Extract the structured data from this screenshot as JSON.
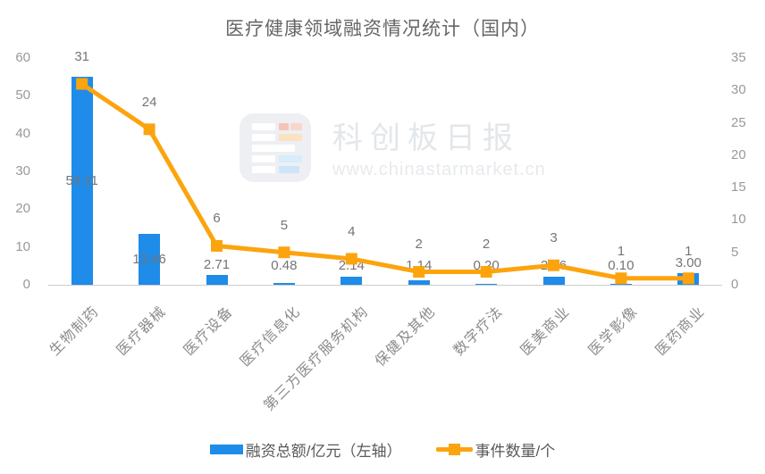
{
  "title": "医疗健康领域融资情况统计（国内）",
  "watermark": {
    "brand": "科创板日报",
    "url": "www.chinastarmarket.cn"
  },
  "legend": {
    "bar": "融资总额/亿元（左轴）",
    "line": "事件数量/个"
  },
  "colors": {
    "bar": "#1e8ce8",
    "line": "#fca40e",
    "axis_line": "#cccccc",
    "title_text": "#666666",
    "tick_text": "#999999",
    "value_text": "#757575",
    "category_text": "#8c8c8c",
    "legend_text": "#595959"
  },
  "chart_data": {
    "type": "bar+line",
    "title": "医疗健康领域融资情况统计（国内）",
    "categories": [
      "生物制药",
      "医疗器械",
      "医疗设备",
      "医疗信息化",
      "第三方医疗服务机构",
      "保健及其他",
      "数字疗法",
      "医美商业",
      "医学影像",
      "医药商业"
    ],
    "series": [
      {
        "name": "融资总额/亿元（左轴）",
        "type": "bar",
        "axis": "left",
        "values": [
          55.11,
          13.46,
          2.71,
          0.48,
          2.14,
          1.14,
          0.2,
          2.16,
          0.1,
          3.0
        ],
        "labels": [
          "55.11",
          "13.46",
          "2.71",
          "0.48",
          "2.14",
          "1.14",
          "0.20",
          "2.16",
          "0.10",
          "3.00"
        ]
      },
      {
        "name": "事件数量/个",
        "type": "line",
        "axis": "right",
        "values": [
          31,
          24,
          6,
          5,
          4,
          2,
          2,
          3,
          1,
          1
        ],
        "labels": [
          "31",
          "24",
          "6",
          "5",
          "4",
          "2",
          "2",
          "3",
          "1",
          "1"
        ]
      }
    ],
    "left_axis": {
      "min": 0,
      "max": 60,
      "ticks": [
        0,
        10,
        20,
        30,
        40,
        50,
        60
      ]
    },
    "right_axis": {
      "min": 0,
      "max": 35,
      "ticks": [
        0,
        5,
        10,
        15,
        20,
        25,
        30,
        35
      ]
    },
    "grid": false,
    "legend_position": "bottom"
  }
}
